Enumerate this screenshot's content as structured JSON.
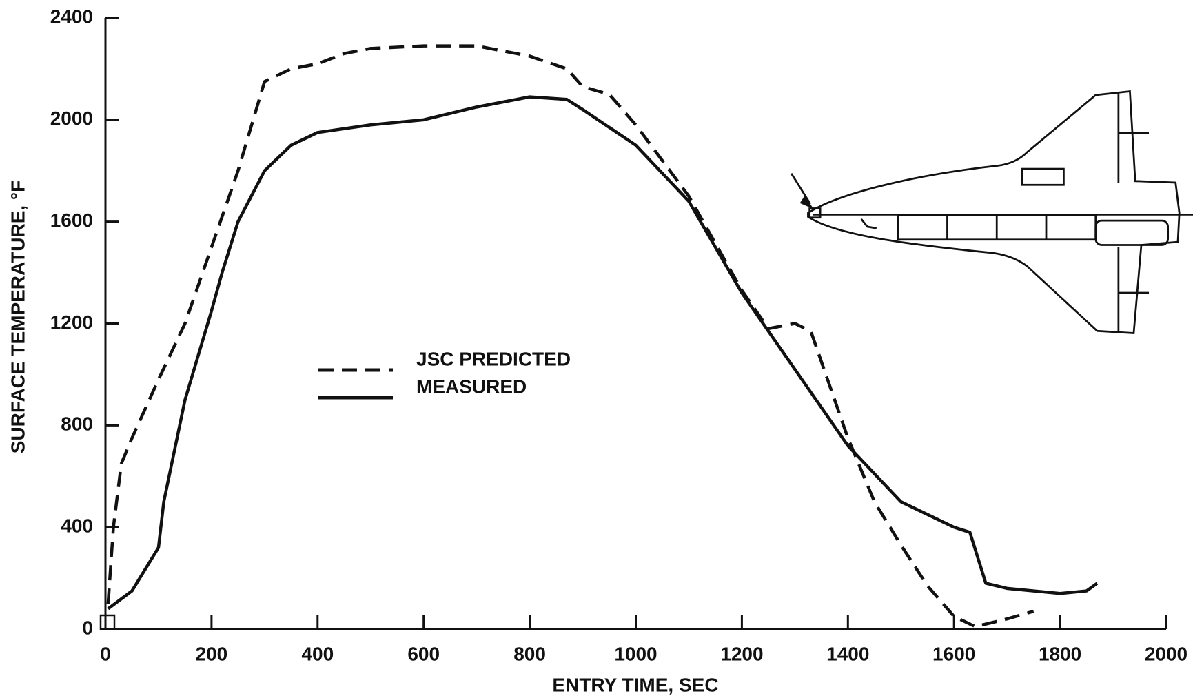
{
  "chart_data": {
    "type": "line",
    "xlabel": "ENTRY TIME, SEC",
    "ylabel": "SURFACE TEMPERATURE, °F",
    "xlim": [
      0,
      2000
    ],
    "xticks": [
      0,
      200,
      400,
      600,
      800,
      1000,
      1200,
      1400,
      1600,
      1800,
      2000
    ],
    "ylim": [
      0,
      2400
    ],
    "yticks": [
      0,
      400,
      800,
      1200,
      1600,
      2000,
      2400
    ],
    "grid": false,
    "series": [
      {
        "name": "JSC PREDICTED",
        "color": "#111111",
        "style": "dashed",
        "x": [
          5,
          15,
          30,
          50,
          100,
          150,
          200,
          250,
          300,
          350,
          400,
          450,
          500,
          600,
          700,
          800,
          870,
          900,
          950,
          1000,
          1100,
          1200,
          1250,
          1300,
          1330,
          1400,
          1450,
          1500,
          1550,
          1600,
          1640,
          1700,
          1750
        ],
        "values": [
          100,
          400,
          650,
          750,
          980,
          1200,
          1500,
          1800,
          2150,
          2200,
          2220,
          2260,
          2280,
          2290,
          2290,
          2250,
          2200,
          2130,
          2100,
          1980,
          1700,
          1330,
          1180,
          1200,
          1170,
          750,
          500,
          330,
          170,
          50,
          10,
          40,
          70
        ]
      },
      {
        "name": "MEASURED",
        "color": "#111111",
        "style": "solid",
        "x": [
          5,
          50,
          100,
          110,
          150,
          200,
          220,
          250,
          300,
          350,
          400,
          500,
          600,
          700,
          800,
          870,
          900,
          1000,
          1100,
          1200,
          1300,
          1400,
          1500,
          1600,
          1630,
          1660,
          1700,
          1800,
          1850,
          1870
        ],
        "values": [
          80,
          150,
          320,
          500,
          900,
          1250,
          1400,
          1600,
          1800,
          1900,
          1950,
          1980,
          2000,
          2050,
          2090,
          2080,
          2040,
          1900,
          1680,
          1320,
          1020,
          720,
          500,
          400,
          380,
          180,
          160,
          140,
          150,
          180
        ]
      }
    ]
  }
}
